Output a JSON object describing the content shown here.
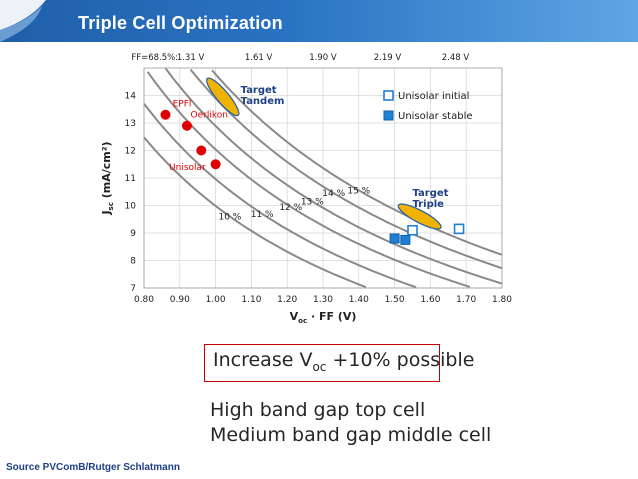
{
  "slide": {
    "title": "Triple Cell Optimization",
    "source": "Source PVComB/Rutger Schlatmann",
    "note": {
      "prefix": "Increase V",
      "sub": "oc",
      "suffix": " +10% possible"
    },
    "bullets": [
      "High band gap top cell",
      "Medium band gap middle cell"
    ]
  },
  "colors": {
    "banner": "#2a73c2",
    "red_points": "#e00000",
    "blue_points": "#1f7fd4",
    "target_fill": "#f0b400",
    "target_edge": "#1f5fa8",
    "iso_lines": "#888888",
    "note_border": "#c00000"
  },
  "chart_data": {
    "type": "scatter",
    "xlabel": "V",
    "xlabel_sub": "oc",
    "xlabel_suffix": " · FF (V)",
    "ylabel": "J",
    "ylabel_sub": "sc",
    "ylabel_suffix": " (mA/cm²)",
    "xlim": [
      0.8,
      1.8
    ],
    "ylim": [
      7,
      15
    ],
    "xticks": [
      "0.80",
      "0.90",
      "1.00",
      "1.10",
      "1.20",
      "1.30",
      "1.40",
      "1.50",
      "1.60",
      "1.70",
      "1.80"
    ],
    "yticks": [
      "7",
      "8",
      "9",
      "10",
      "11",
      "12",
      "13",
      "14"
    ],
    "top_axis": {
      "labels": [
        "FF=68.5%:",
        "1.31 V",
        "1.61 V",
        "1.90 V",
        "2.19 V",
        "2.48 V"
      ],
      "label_x": [
        0.83,
        0.93,
        1.12,
        1.3,
        1.48,
        1.67
      ]
    },
    "grid": true,
    "iso_efficiency_curves": [
      {
        "label": "10 %",
        "eff": 10,
        "label_at": [
          1.04,
          9.6
        ]
      },
      {
        "label": "11 %",
        "eff": 11,
        "label_at": [
          1.13,
          9.7
        ]
      },
      {
        "label": "12 %",
        "eff": 12,
        "label_at": [
          1.21,
          9.95
        ]
      },
      {
        "label": "13 %",
        "eff": 13,
        "label_at": [
          1.27,
          10.15
        ]
      },
      {
        "label": "14 %",
        "eff": 14,
        "label_at": [
          1.33,
          10.45
        ]
      },
      {
        "label": "15 %",
        "eff": 15,
        "label_at": [
          1.4,
          10.55
        ]
      }
    ],
    "series": [
      {
        "name": "Unisolar initial",
        "marker": "open-square",
        "color": "#1f7fd4",
        "points": [
          [
            1.55,
            9.1
          ],
          [
            1.68,
            9.15
          ]
        ]
      },
      {
        "name": "Unisolar stable",
        "marker": "filled-square",
        "color": "#1f7fd4",
        "points": [
          [
            1.5,
            8.8
          ],
          [
            1.53,
            8.75
          ]
        ]
      },
      {
        "name": "",
        "marker": "filled-circle",
        "color": "#e00000",
        "points": [
          [
            0.86,
            13.3
          ],
          [
            0.92,
            12.9
          ],
          [
            0.96,
            12.0
          ],
          [
            1.0,
            11.5
          ]
        ]
      }
    ],
    "point_labels": [
      {
        "text": "EPFl",
        "at": [
          0.88,
          13.6
        ],
        "color": "#e00000"
      },
      {
        "text": "Oerlikon",
        "at": [
          0.93,
          13.2
        ],
        "color": "#e00000"
      },
      {
        "text": "Unisolar",
        "at": [
          0.87,
          11.3
        ],
        "color": "#e00000"
      }
    ],
    "targets": [
      {
        "label_lines": [
          "Target",
          "Tandem"
        ],
        "center": [
          1.02,
          13.95
        ],
        "label_at": [
          1.07,
          14.1
        ]
      },
      {
        "label_lines": [
          "Target",
          "Triple"
        ],
        "center": [
          1.57,
          9.6
        ],
        "label_at": [
          1.55,
          10.35
        ]
      }
    ],
    "legend": {
      "position": "top-right",
      "entries": [
        "Unisolar initial",
        "Unisolar stable"
      ]
    }
  }
}
